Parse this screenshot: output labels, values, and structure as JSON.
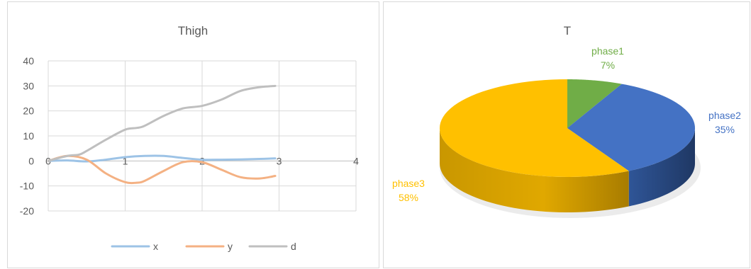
{
  "chart_data": [
    {
      "type": "line",
      "title": "Thigh",
      "xlabel": "",
      "ylabel": "",
      "xlim": [
        0,
        4
      ],
      "ylim": [
        -20,
        40
      ],
      "x_ticks": [
        0,
        1,
        2,
        3,
        4
      ],
      "y_ticks": [
        -20,
        -10,
        0,
        10,
        20,
        30,
        40
      ],
      "grid": true,
      "legend": "bottom",
      "series": [
        {
          "name": "x",
          "color": "#9dc3e6",
          "x": [
            0,
            0.25,
            0.5,
            0.75,
            1.0,
            1.25,
            1.5,
            1.75,
            2.0,
            2.25,
            2.5,
            2.75,
            2.95
          ],
          "y": [
            0,
            0.2,
            -0.2,
            0.5,
            1.5,
            2.0,
            2.0,
            1.2,
            0.5,
            0.5,
            0.6,
            0.8,
            1.0
          ]
        },
        {
          "name": "y",
          "color": "#f4b183",
          "x": [
            0,
            0.25,
            0.5,
            0.75,
            1.0,
            1.15,
            1.25,
            1.5,
            1.75,
            2.0,
            2.25,
            2.5,
            2.75,
            2.95
          ],
          "y": [
            0,
            2.0,
            0.5,
            -5.0,
            -8.5,
            -8.7,
            -8.0,
            -4.0,
            -0.5,
            -0.5,
            -3.5,
            -6.5,
            -7.0,
            -6.0
          ]
        },
        {
          "name": "d",
          "color": "#bfbfbf",
          "x": [
            0,
            0.25,
            0.4,
            0.5,
            0.75,
            1.0,
            1.15,
            1.25,
            1.5,
            1.75,
            2.0,
            2.25,
            2.5,
            2.75,
            2.95
          ],
          "y": [
            0,
            2.0,
            2.5,
            4.0,
            8.5,
            12.5,
            13.2,
            14.0,
            18.0,
            21.0,
            22.0,
            24.5,
            28.0,
            29.5,
            30.0
          ]
        }
      ]
    },
    {
      "type": "pie",
      "title": "T",
      "legend": "none",
      "slices": [
        {
          "label": "phase1",
          "value": 7,
          "display": "7%",
          "color": "#70ad47"
        },
        {
          "label": "phase2",
          "value": 35,
          "display": "35%",
          "color": "#4472c4"
        },
        {
          "label": "phase3",
          "value": 58,
          "display": "58%",
          "color": "#ffc000"
        }
      ]
    }
  ]
}
